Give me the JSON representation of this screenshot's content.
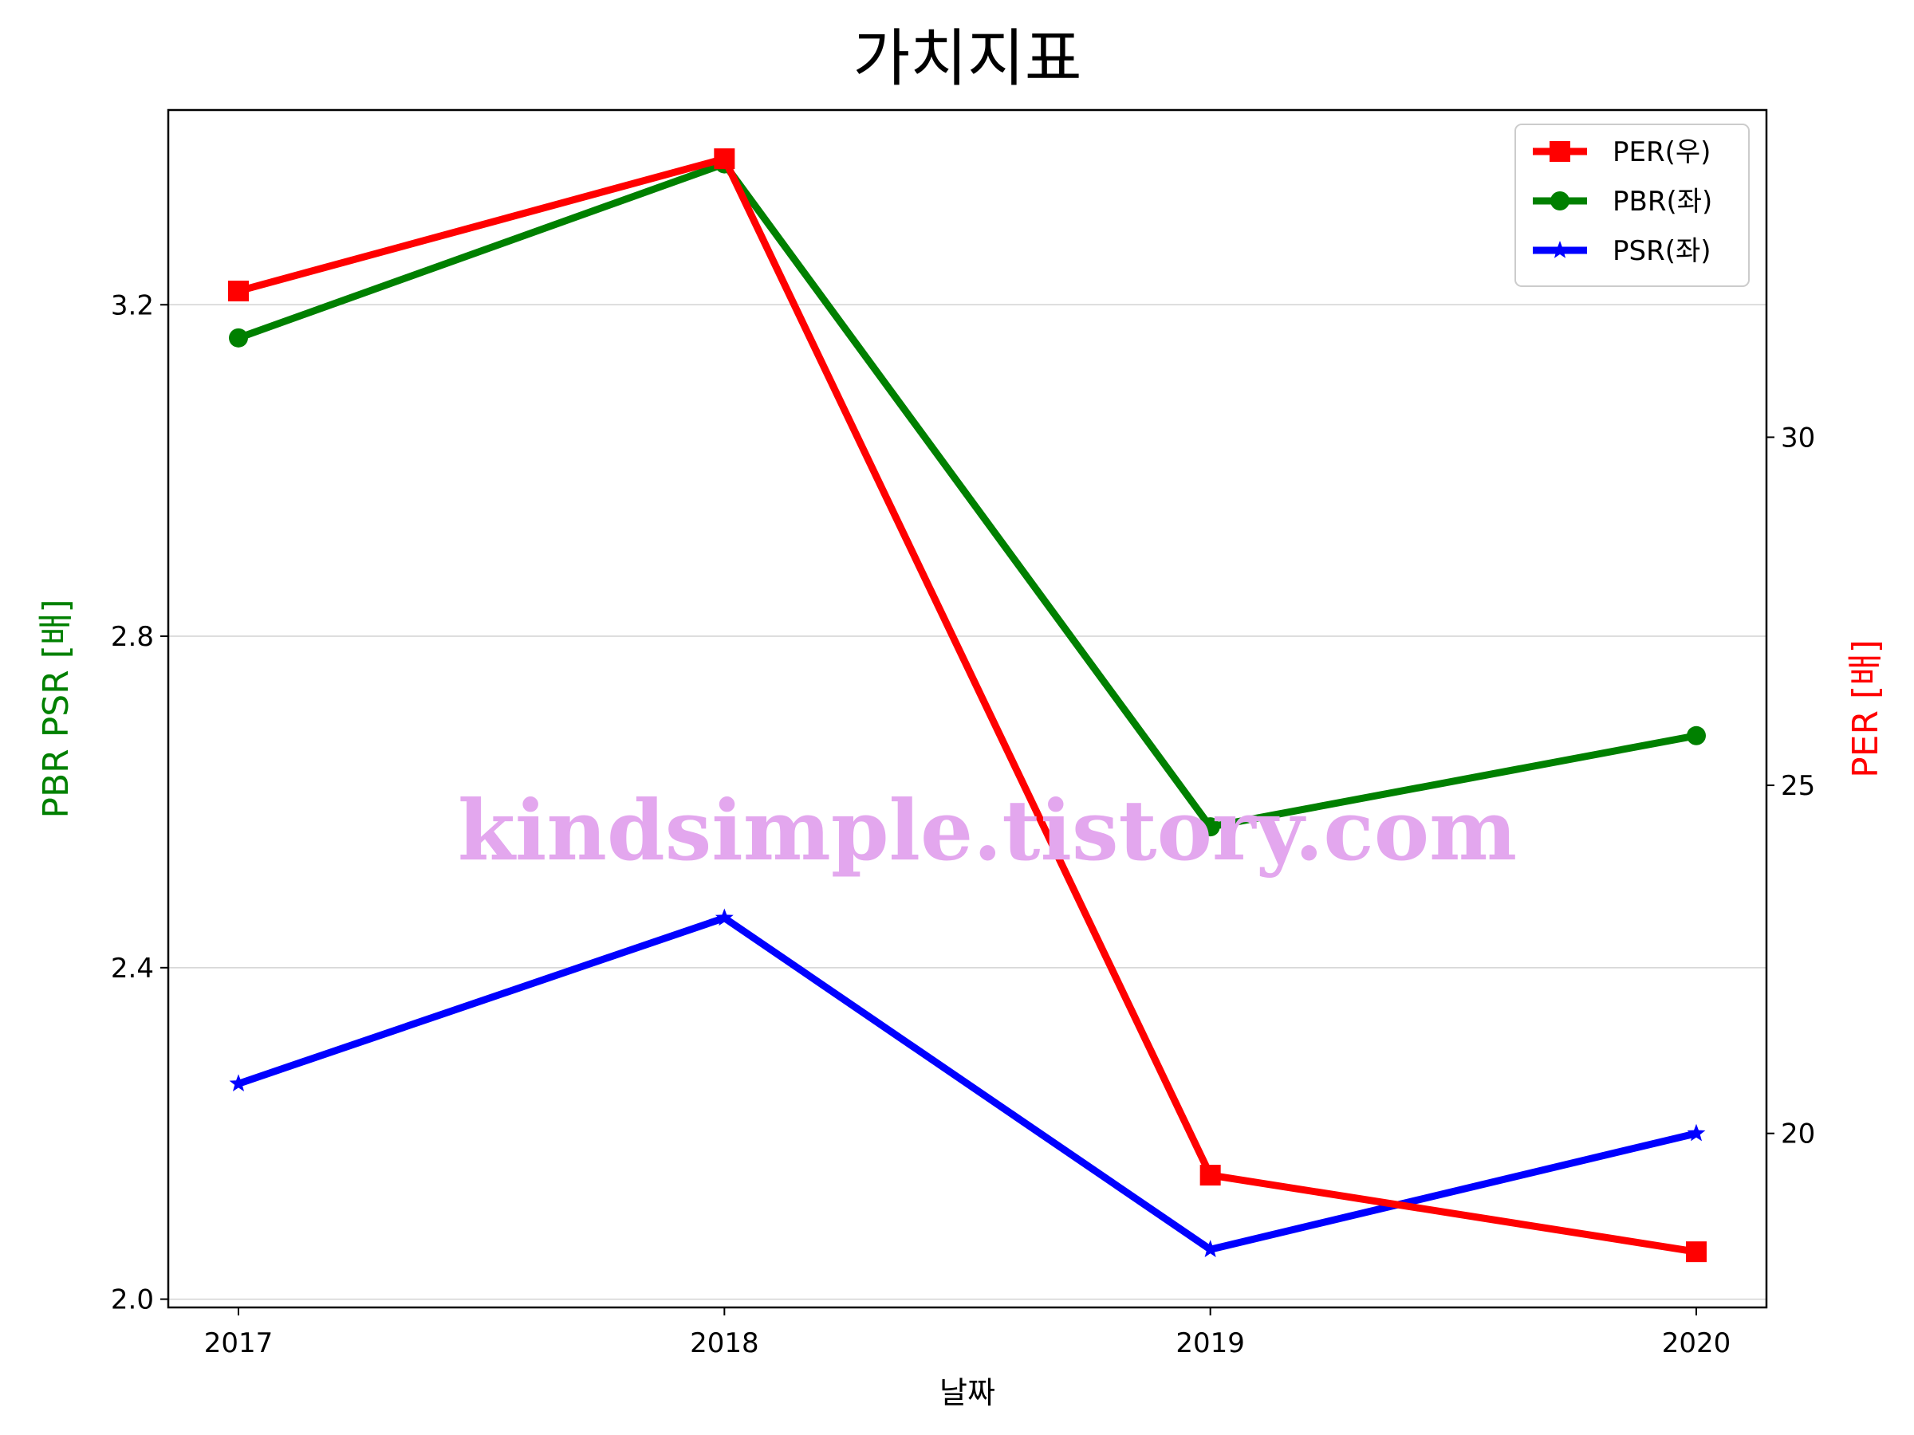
{
  "chart_data": {
    "type": "line",
    "title": "가치지표",
    "xlabel": "날짜",
    "ylabel_left": "PBR PSR [배]",
    "ylabel_right": "PER [배]",
    "categories": [
      "2017",
      "2018",
      "2019",
      "2020"
    ],
    "ylim_left": [
      1.99,
      3.435
    ],
    "yticks_left": [
      "2.0",
      "2.4",
      "2.8",
      "3.2"
    ],
    "ylim_right": [
      17.5,
      34.7
    ],
    "yticks_right": [
      "20",
      "25",
      "30"
    ],
    "grid": "horizontal (left axis)",
    "legend_position": "top-right",
    "series": [
      {
        "name": "PER(우)",
        "axis": "right",
        "color": "#ff0000",
        "marker": "square",
        "values": [
          32.1,
          34.0,
          19.4,
          18.3
        ]
      },
      {
        "name": "PBR(좌)",
        "axis": "left",
        "color": "#008000",
        "marker": "circle",
        "values": [
          3.16,
          3.37,
          2.57,
          2.68
        ]
      },
      {
        "name": "PSR(좌)",
        "axis": "left",
        "color": "#0000ff",
        "marker": "star",
        "values": [
          2.26,
          2.46,
          2.06,
          2.2
        ]
      }
    ],
    "watermark": "kindsimple.tistory.com",
    "watermark_color": "#e3a7ee",
    "left_label_color": "#008000",
    "right_label_color": "#ff0000"
  }
}
